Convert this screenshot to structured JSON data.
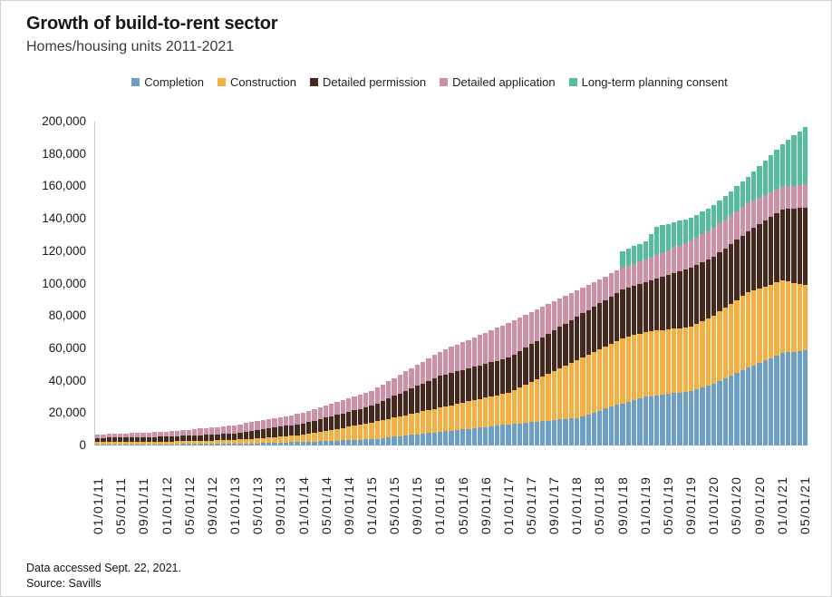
{
  "header": {
    "title": "Growth of build-to-rent sector",
    "subtitle": "Homes/housing units 2011-2021"
  },
  "footer": {
    "line1": "Data accessed Sept. 22, 2021.",
    "line2": "Source: Savills"
  },
  "chart_data": {
    "type": "bar",
    "stacked": true,
    "title": "Growth of build-to-rent sector",
    "subtitle": "Homes/housing units 2011-2021",
    "ylabel": "Homes/housing units",
    "ylim": [
      0,
      200000
    ],
    "y_tick_step": 20000,
    "y_tick_labels": [
      "0",
      "20,000",
      "40,000",
      "60,000",
      "80,000",
      "100,000",
      "120,000",
      "140,000",
      "160,000",
      "180,000",
      "200,000"
    ],
    "gridlines": "none",
    "legend_position": "top",
    "n_bars": 125,
    "x_start_label": "01/01/11",
    "x_end_label": "05/01/21",
    "x_tick_every_n_bars": 4,
    "x_tick_labels": [
      "01/01/11",
      "05/01/11",
      "09/01/11",
      "01/01/12",
      "05/01/12",
      "09/01/12",
      "01/01/13",
      "05/01/13",
      "09/01/13",
      "01/01/14",
      "05/01/14",
      "09/01/14",
      "01/01/15",
      "05/01/15",
      "09/01/15",
      "01/01/16",
      "05/01/16",
      "09/01/16",
      "01/01/17",
      "05/01/17",
      "09/01/17",
      "01/01/18",
      "05/01/18",
      "09/01/18",
      "01/01/19",
      "05/01/19",
      "09/01/19",
      "01/01/20",
      "05/01/20",
      "09/01/20",
      "01/01/21",
      "05/01/21"
    ],
    "series": [
      {
        "name": "Completion",
        "color": "#6D9EC6",
        "anchor_points": [
          [
            0,
            500
          ],
          [
            12,
            800
          ],
          [
            24,
            1000
          ],
          [
            36,
            2200
          ],
          [
            48,
            3800
          ],
          [
            60,
            8400
          ],
          [
            72,
            13000
          ],
          [
            84,
            17000
          ],
          [
            91,
            25000
          ],
          [
            92,
            26000
          ],
          [
            96,
            30000
          ],
          [
            98,
            31000
          ],
          [
            104,
            33500
          ],
          [
            108,
            38300
          ],
          [
            114,
            48000
          ],
          [
            120,
            57000
          ],
          [
            124,
            58800
          ]
        ]
      },
      {
        "name": "Construction",
        "color": "#F2AF44",
        "anchor_points": [
          [
            0,
            1800
          ],
          [
            12,
            1600
          ],
          [
            24,
            2400
          ],
          [
            36,
            4300
          ],
          [
            48,
            10300
          ],
          [
            60,
            15000
          ],
          [
            72,
            19600
          ],
          [
            84,
            35500
          ],
          [
            91,
            39500
          ],
          [
            92,
            40200
          ],
          [
            96,
            40200
          ],
          [
            98,
            40000
          ],
          [
            104,
            39800
          ],
          [
            108,
            42000
          ],
          [
            114,
            46700
          ],
          [
            120,
            44800
          ],
          [
            124,
            40500
          ]
        ]
      },
      {
        "name": "Detailed permission",
        "color": "#46281C",
        "anchor_points": [
          [
            0,
            2400
          ],
          [
            12,
            3000
          ],
          [
            24,
            4100
          ],
          [
            36,
            7100
          ],
          [
            48,
            10300
          ],
          [
            60,
            19600
          ],
          [
            72,
            21500
          ],
          [
            84,
            27100
          ],
          [
            91,
            29500
          ],
          [
            92,
            29900
          ],
          [
            96,
            30800
          ],
          [
            98,
            32000
          ],
          [
            104,
            36400
          ],
          [
            108,
            36400
          ],
          [
            114,
            37400
          ],
          [
            120,
            43900
          ],
          [
            124,
            47500
          ]
        ]
      },
      {
        "name": "Detailed application",
        "color": "#CD90A6",
        "anchor_points": [
          [
            0,
            2200
          ],
          [
            12,
            3000
          ],
          [
            24,
            5000
          ],
          [
            36,
            6400
          ],
          [
            48,
            9200
          ],
          [
            60,
            14900
          ],
          [
            72,
            21500
          ],
          [
            84,
            16100
          ],
          [
            91,
            14000
          ],
          [
            92,
            13500
          ],
          [
            96,
            14000
          ],
          [
            98,
            14500
          ],
          [
            104,
            16800
          ],
          [
            108,
            17800
          ],
          [
            114,
            17800
          ],
          [
            120,
            14000
          ],
          [
            124,
            14500
          ]
        ]
      },
      {
        "name": "Long-term planning consent",
        "color": "#55BD9D",
        "anchor_points": [
          [
            0,
            0
          ],
          [
            91,
            0
          ],
          [
            92,
            10400
          ],
          [
            96,
            11200
          ],
          [
            98,
            17750
          ],
          [
            104,
            14000
          ],
          [
            108,
            14000
          ],
          [
            114,
            15900
          ],
          [
            120,
            26200
          ],
          [
            124,
            35500
          ]
        ]
      }
    ]
  }
}
